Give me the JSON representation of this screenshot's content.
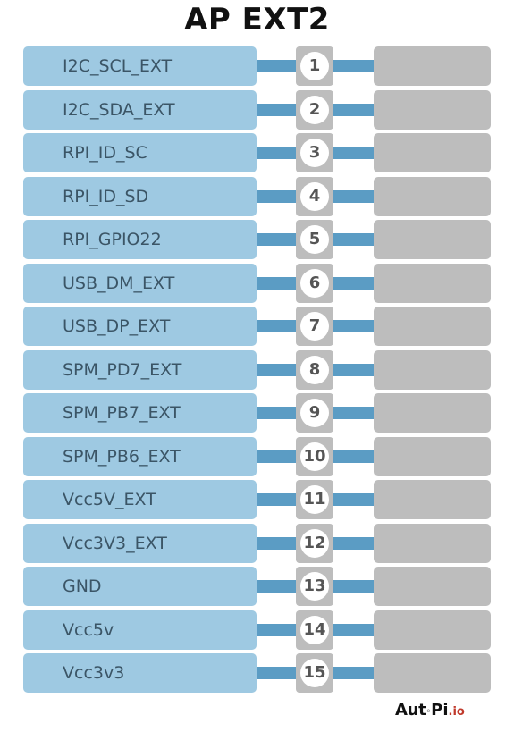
{
  "title": "AP EXT2",
  "pins": [
    {
      "number": "1",
      "label": "I2C_SCL_EXT"
    },
    {
      "number": "2",
      "label": "I2C_SDA_EXT"
    },
    {
      "number": "3",
      "label": "RPI_ID_SC"
    },
    {
      "number": "4",
      "label": "RPI_ID_SD"
    },
    {
      "number": "5",
      "label": "RPI_GPIO22"
    },
    {
      "number": "6",
      "label": "USB_DM_EXT"
    },
    {
      "number": "7",
      "label": "USB_DP_EXT"
    },
    {
      "number": "8",
      "label": "SPM_PD7_EXT"
    },
    {
      "number": "9",
      "label": "SPM_PB7_EXT"
    },
    {
      "number": "10",
      "label": "SPM_PB6_EXT"
    },
    {
      "number": "11",
      "label": "Vcc5V_EXT"
    },
    {
      "number": "12",
      "label": "Vcc3V3_EXT"
    },
    {
      "number": "13",
      "label": "GND"
    },
    {
      "number": "14",
      "label": "Vcc5v"
    },
    {
      "number": "15",
      "label": "Vcc3v3"
    }
  ],
  "logo": {
    "text_auto": "Aut",
    "text_mark": "o",
    "text_pi": "Pi",
    "text_io": ".io"
  },
  "colors": {
    "label_box": "#9ec9e2",
    "connector": "#5b9cc4",
    "pin_box": "#bdbdbd",
    "label_text": "#3b5566",
    "logo_accent": "#c0392b"
  }
}
